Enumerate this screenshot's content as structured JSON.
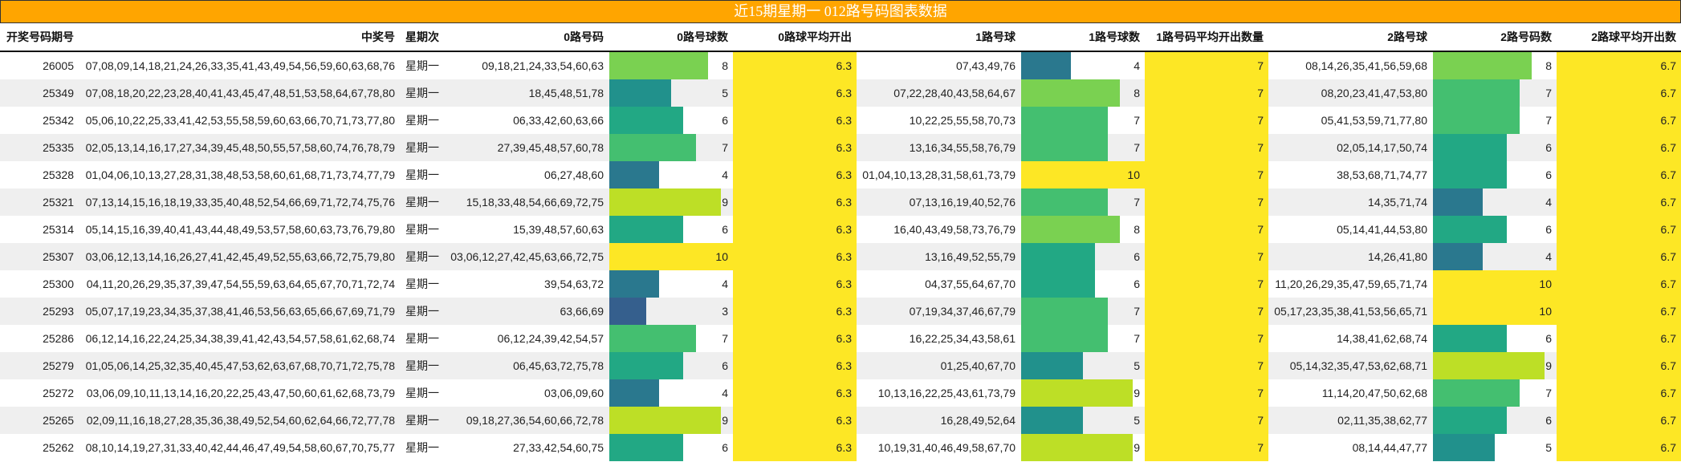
{
  "title": "近15期星期一 012路号码图表数据",
  "headers": {
    "issue": "开奖号码期号",
    "numbers": "中奖号",
    "weekday": "星期次",
    "road0_numbers": "0路号码",
    "road0_count": "0路号球数",
    "road0_avg": "0路球平均开出",
    "road1_numbers": "1路号球",
    "road1_count": "1路号球数",
    "road1_avg": "1路号码平均开出数量",
    "road2_numbers": "2路号球",
    "road2_count": "2路号码数",
    "road2_avg": "2路球平均开出数"
  },
  "colors": {
    "title_bg": "#FFA500",
    "avg_bg": "#FDE725",
    "count_scale": {
      "3": "#355F8D",
      "4": "#2A788E",
      "5": "#21918C",
      "6": "#22A884",
      "7": "#44BF70",
      "8": "#7AD151",
      "9": "#BDDF26",
      "10": "#FDE725"
    },
    "row_alt": "#EFEFEF"
  },
  "rows": [
    {
      "issue": "26005",
      "numbers": "07,08,09,14,18,21,24,26,33,35,41,43,49,54,56,59,60,63,68,76",
      "weekday": "星期一",
      "r0": "09,18,21,24,33,54,60,63",
      "r0c": "8",
      "r0a": "6.3",
      "r1": "07,43,49,76",
      "r1c": "4",
      "r1a": "7",
      "r2": "08,14,26,35,41,56,59,68",
      "r2c": "8",
      "r2a": "6.7"
    },
    {
      "issue": "25349",
      "numbers": "07,08,18,20,22,23,28,40,41,43,45,47,48,51,53,58,64,67,78,80",
      "weekday": "星期一",
      "r0": "18,45,48,51,78",
      "r0c": "5",
      "r0a": "6.3",
      "r1": "07,22,28,40,43,58,64,67",
      "r1c": "8",
      "r1a": "7",
      "r2": "08,20,23,41,47,53,80",
      "r2c": "7",
      "r2a": "6.7"
    },
    {
      "issue": "25342",
      "numbers": "05,06,10,22,25,33,41,42,53,55,58,59,60,63,66,70,71,73,77,80",
      "weekday": "星期一",
      "r0": "06,33,42,60,63,66",
      "r0c": "6",
      "r0a": "6.3",
      "r1": "10,22,25,55,58,70,73",
      "r1c": "7",
      "r1a": "7",
      "r2": "05,41,53,59,71,77,80",
      "r2c": "7",
      "r2a": "6.7"
    },
    {
      "issue": "25335",
      "numbers": "02,05,13,14,16,17,27,34,39,45,48,50,55,57,58,60,74,76,78,79",
      "weekday": "星期一",
      "r0": "27,39,45,48,57,60,78",
      "r0c": "7",
      "r0a": "6.3",
      "r1": "13,16,34,55,58,76,79",
      "r1c": "7",
      "r1a": "7",
      "r2": "02,05,14,17,50,74",
      "r2c": "6",
      "r2a": "6.7"
    },
    {
      "issue": "25328",
      "numbers": "01,04,06,10,13,27,28,31,38,48,53,58,60,61,68,71,73,74,77,79",
      "weekday": "星期一",
      "r0": "06,27,48,60",
      "r0c": "4",
      "r0a": "6.3",
      "r1": "01,04,10,13,28,31,58,61,73,79",
      "r1c": "10",
      "r1a": "7",
      "r2": "38,53,68,71,74,77",
      "r2c": "6",
      "r2a": "6.7"
    },
    {
      "issue": "25321",
      "numbers": "07,13,14,15,16,18,19,33,35,40,48,52,54,66,69,71,72,74,75,76",
      "weekday": "星期一",
      "r0": "15,18,33,48,54,66,69,72,75",
      "r0c": "9",
      "r0a": "6.3",
      "r1": "07,13,16,19,40,52,76",
      "r1c": "7",
      "r1a": "7",
      "r2": "14,35,71,74",
      "r2c": "4",
      "r2a": "6.7"
    },
    {
      "issue": "25314",
      "numbers": "05,14,15,16,39,40,41,43,44,48,49,53,57,58,60,63,73,76,79,80",
      "weekday": "星期一",
      "r0": "15,39,48,57,60,63",
      "r0c": "6",
      "r0a": "6.3",
      "r1": "16,40,43,49,58,73,76,79",
      "r1c": "8",
      "r1a": "7",
      "r2": "05,14,41,44,53,80",
      "r2c": "6",
      "r2a": "6.7"
    },
    {
      "issue": "25307",
      "numbers": "03,06,12,13,14,16,26,27,41,42,45,49,52,55,63,66,72,75,79,80",
      "weekday": "星期一",
      "r0": "03,06,12,27,42,45,63,66,72,75",
      "r0c": "10",
      "r0a": "6.3",
      "r1": "13,16,49,52,55,79",
      "r1c": "6",
      "r1a": "7",
      "r2": "14,26,41,80",
      "r2c": "4",
      "r2a": "6.7"
    },
    {
      "issue": "25300",
      "numbers": "04,11,20,26,29,35,37,39,47,54,55,59,63,64,65,67,70,71,72,74",
      "weekday": "星期一",
      "r0": "39,54,63,72",
      "r0c": "4",
      "r0a": "6.3",
      "r1": "04,37,55,64,67,70",
      "r1c": "6",
      "r1a": "7",
      "r2": "11,20,26,29,35,47,59,65,71,74",
      "r2c": "10",
      "r2a": "6.7"
    },
    {
      "issue": "25293",
      "numbers": "05,07,17,19,23,34,35,37,38,41,46,53,56,63,65,66,67,69,71,79",
      "weekday": "星期一",
      "r0": "63,66,69",
      "r0c": "3",
      "r0a": "6.3",
      "r1": "07,19,34,37,46,67,79",
      "r1c": "7",
      "r1a": "7",
      "r2": "05,17,23,35,38,41,53,56,65,71",
      "r2c": "10",
      "r2a": "6.7"
    },
    {
      "issue": "25286",
      "numbers": "06,12,14,16,22,24,25,34,38,39,41,42,43,54,57,58,61,62,68,74",
      "weekday": "星期一",
      "r0": "06,12,24,39,42,54,57",
      "r0c": "7",
      "r0a": "6.3",
      "r1": "16,22,25,34,43,58,61",
      "r1c": "7",
      "r1a": "7",
      "r2": "14,38,41,62,68,74",
      "r2c": "6",
      "r2a": "6.7"
    },
    {
      "issue": "25279",
      "numbers": "01,05,06,14,25,32,35,40,45,47,53,62,63,67,68,70,71,72,75,78",
      "weekday": "星期一",
      "r0": "06,45,63,72,75,78",
      "r0c": "6",
      "r0a": "6.3",
      "r1": "01,25,40,67,70",
      "r1c": "5",
      "r1a": "7",
      "r2": "05,14,32,35,47,53,62,68,71",
      "r2c": "9",
      "r2a": "6.7"
    },
    {
      "issue": "25272",
      "numbers": "03,06,09,10,11,13,14,16,20,22,25,43,47,50,60,61,62,68,73,79",
      "weekday": "星期一",
      "r0": "03,06,09,60",
      "r0c": "4",
      "r0a": "6.3",
      "r1": "10,13,16,22,25,43,61,73,79",
      "r1c": "9",
      "r1a": "7",
      "r2": "11,14,20,47,50,62,68",
      "r2c": "7",
      "r2a": "6.7"
    },
    {
      "issue": "25265",
      "numbers": "02,09,11,16,18,27,28,35,36,38,49,52,54,60,62,64,66,72,77,78",
      "weekday": "星期一",
      "r0": "09,18,27,36,54,60,66,72,78",
      "r0c": "9",
      "r0a": "6.3",
      "r1": "16,28,49,52,64",
      "r1c": "5",
      "r1a": "7",
      "r2": "02,11,35,38,62,77",
      "r2c": "6",
      "r2a": "6.7"
    },
    {
      "issue": "25262",
      "numbers": "08,10,14,19,27,31,33,40,42,44,46,47,49,54,58,60,67,70,75,77",
      "weekday": "星期一",
      "r0": "27,33,42,54,60,75",
      "r0c": "6",
      "r0a": "6.3",
      "r1": "10,19,31,40,46,49,58,67,70",
      "r1c": "9",
      "r1a": "7",
      "r2": "08,14,44,47,77",
      "r2c": "5",
      "r2a": "6.7"
    }
  ],
  "chart_data": {
    "type": "table",
    "title": "近15期星期一 012路号码图表数据",
    "columns": [
      "开奖号码期号",
      "中奖号",
      "星期次",
      "0路号码",
      "0路号球数",
      "0路球平均开出",
      "1路号球",
      "1路号球数",
      "1路号码平均开出数量",
      "2路号球",
      "2路号码数",
      "2路球平均开出数"
    ],
    "categories": [
      "26005",
      "25349",
      "25342",
      "25335",
      "25328",
      "25321",
      "25314",
      "25307",
      "25300",
      "25293",
      "25286",
      "25279",
      "25272",
      "25265",
      "25262"
    ],
    "series": [
      {
        "name": "0路号球数",
        "values": [
          8,
          5,
          6,
          7,
          4,
          9,
          6,
          10,
          4,
          3,
          7,
          6,
          4,
          9,
          6
        ]
      },
      {
        "name": "1路号球数",
        "values": [
          4,
          8,
          7,
          7,
          10,
          7,
          8,
          6,
          6,
          7,
          7,
          5,
          9,
          5,
          9
        ]
      },
      {
        "name": "2路号码数",
        "values": [
          8,
          7,
          7,
          6,
          6,
          4,
          6,
          4,
          10,
          10,
          6,
          9,
          7,
          6,
          5
        ]
      },
      {
        "name": "0路球平均开出",
        "values": [
          6.3,
          6.3,
          6.3,
          6.3,
          6.3,
          6.3,
          6.3,
          6.3,
          6.3,
          6.3,
          6.3,
          6.3,
          6.3,
          6.3,
          6.3
        ]
      },
      {
        "name": "1路号码平均开出数量",
        "values": [
          7,
          7,
          7,
          7,
          7,
          7,
          7,
          7,
          7,
          7,
          7,
          7,
          7,
          7,
          7
        ]
      },
      {
        "name": "2路球平均开出数",
        "values": [
          6.7,
          6.7,
          6.7,
          6.7,
          6.7,
          6.7,
          6.7,
          6.7,
          6.7,
          6.7,
          6.7,
          6.7,
          6.7,
          6.7,
          6.7
        ]
      }
    ],
    "bar_scale_max": 10,
    "colormap": "viridis"
  }
}
